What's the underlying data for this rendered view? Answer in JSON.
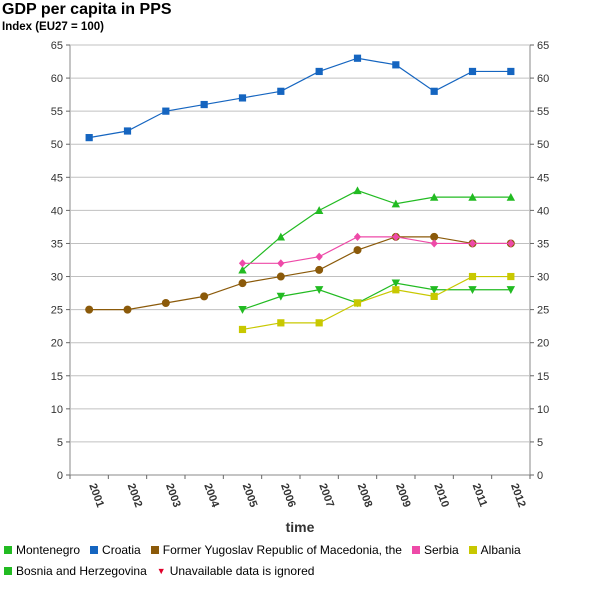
{
  "chart_data": {
    "type": "line",
    "title": "GDP per capita in PPS",
    "subtitle": "Index (EU27 = 100)",
    "xlabel": "time",
    "ylabel": "",
    "ylim": [
      0,
      65
    ],
    "yticks": [
      0,
      5,
      10,
      15,
      20,
      25,
      30,
      35,
      40,
      45,
      50,
      55,
      60,
      65
    ],
    "grid": true,
    "legend_position": "bottom",
    "categories": [
      "2001",
      "2002",
      "2003",
      "2004",
      "2005",
      "2006",
      "2007",
      "2008",
      "2009",
      "2010",
      "2011",
      "2012"
    ],
    "series": [
      {
        "name": "Croatia",
        "color": "#1565c0",
        "marker": "square",
        "values": [
          51,
          52,
          55,
          56,
          57,
          58,
          61,
          63,
          62,
          58,
          61,
          61
        ]
      },
      {
        "name": "Former Yugoslav Republic of Macedonia, the",
        "color": "#8b5a0a",
        "marker": "circle",
        "values": [
          25,
          25,
          26,
          27,
          29,
          30,
          31,
          34,
          36,
          36,
          35,
          35
        ]
      },
      {
        "name": "Montenegro",
        "color": "#22bb22",
        "marker": "triangle-up",
        "values": [
          null,
          null,
          null,
          null,
          31,
          36,
          40,
          43,
          41,
          42,
          42,
          42
        ]
      },
      {
        "name": "Serbia",
        "color": "#ee4aa8",
        "marker": "diamond",
        "values": [
          null,
          null,
          null,
          null,
          32,
          32,
          33,
          36,
          36,
          35,
          35,
          35
        ]
      },
      {
        "name": "Bosnia and Herzegovina",
        "color": "#22bb22",
        "marker": "triangle-down",
        "values": [
          null,
          null,
          null,
          null,
          25,
          27,
          28,
          26,
          29,
          28,
          28,
          28
        ]
      },
      {
        "name": "Albania",
        "color": "#c8c800",
        "marker": "square",
        "values": [
          null,
          null,
          null,
          null,
          22,
          23,
          23,
          26,
          28,
          27,
          30,
          30
        ]
      }
    ]
  },
  "legend": {
    "montenegro": {
      "label": "Montenegro",
      "color": "#22bb22"
    },
    "croatia": {
      "label": "Croatia",
      "color": "#1565c0"
    },
    "macedonia": {
      "label": "Former Yugoslav Republic of Macedonia, the",
      "color": "#8b5a0a"
    },
    "serbia": {
      "label": "Serbia",
      "color": "#ee4aa8"
    },
    "albania": {
      "label": "Albania",
      "color": "#c8c800"
    },
    "bosnia": {
      "label": "Bosnia and Herzegovina",
      "color": "#22bb22"
    },
    "note": "Unavailable data is ignored"
  }
}
